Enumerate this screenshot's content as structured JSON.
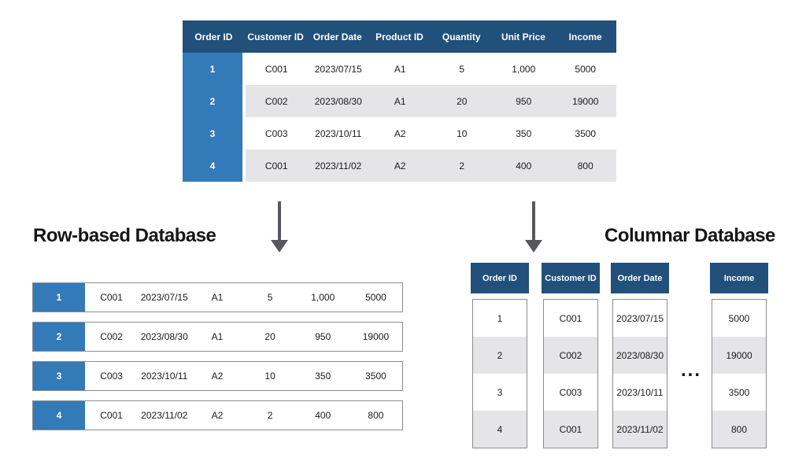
{
  "colors": {
    "navy": "#21507A",
    "blue": "#337AB9",
    "alt_row": "#E5E5E8",
    "border": "#8D8D8D",
    "arrow": "#57585B",
    "ink": "#161616"
  },
  "main_table": {
    "headers": [
      "Order ID",
      "Customer ID",
      "Order Date",
      "Product ID",
      "Quantity",
      "Unit Price",
      "Income"
    ],
    "rows": [
      {
        "id": "1",
        "cells": [
          "C001",
          "2023/07/15",
          "A1",
          "5",
          "1,000",
          "5000"
        ]
      },
      {
        "id": "2",
        "cells": [
          "C002",
          "2023/08/30",
          "A1",
          "20",
          "950",
          "19000"
        ]
      },
      {
        "id": "3",
        "cells": [
          "C003",
          "2023/10/11",
          "A2",
          "10",
          "350",
          "3500"
        ]
      },
      {
        "id": "4",
        "cells": [
          "C001",
          "2023/11/02",
          "A2",
          "2",
          "400",
          "800"
        ]
      }
    ]
  },
  "row_based": {
    "title": "Row-based Database",
    "rows": [
      {
        "id": "1",
        "cells": [
          "C001",
          "2023/07/15",
          "A1",
          "5",
          "1,000",
          "5000"
        ]
      },
      {
        "id": "2",
        "cells": [
          "C002",
          "2023/08/30",
          "A1",
          "20",
          "950",
          "19000"
        ]
      },
      {
        "id": "3",
        "cells": [
          "C003",
          "2023/10/11",
          "A2",
          "10",
          "350",
          "3500"
        ]
      },
      {
        "id": "4",
        "cells": [
          "C001",
          "2023/11/02",
          "A2",
          "2",
          "400",
          "800"
        ]
      }
    ]
  },
  "columnar": {
    "title": "Columnar Database",
    "ellipsis": "...",
    "columns": [
      {
        "header": "Order ID",
        "values": [
          "1",
          "2",
          "3",
          "4"
        ]
      },
      {
        "header": "Customer ID",
        "values": [
          "C001",
          "C002",
          "C003",
          "C001"
        ]
      },
      {
        "header": "Order Date",
        "values": [
          "2023/07/15",
          "2023/08/30",
          "2023/10/11",
          "2023/11/02"
        ]
      },
      {
        "header": "Income",
        "values": [
          "5000",
          "19000",
          "3500",
          "800"
        ]
      }
    ]
  }
}
